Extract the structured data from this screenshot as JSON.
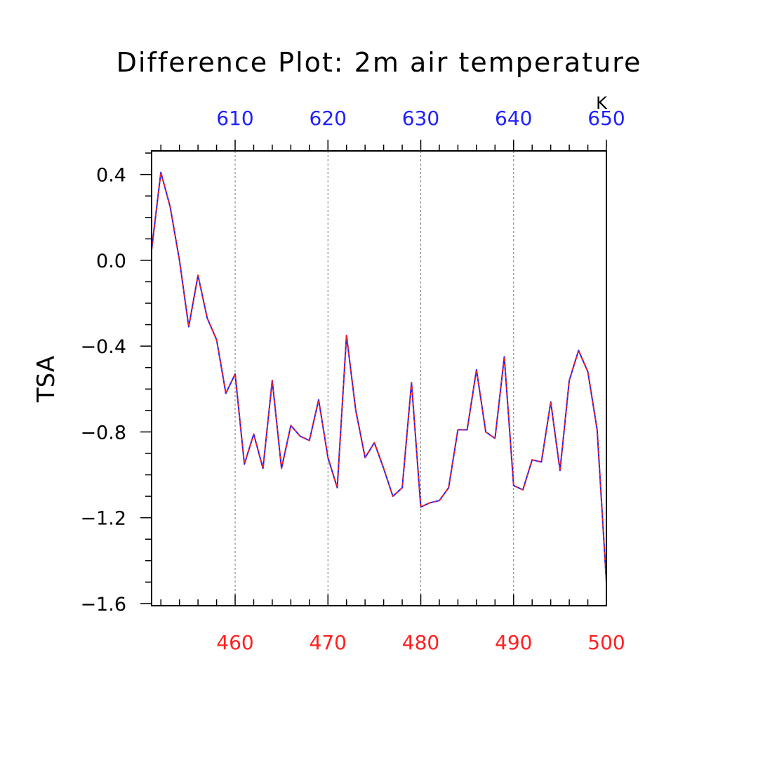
{
  "chart_data": {
    "type": "line",
    "title": "Difference Plot: 2m air temperature",
    "ylabel": "TSA",
    "units_label": "K",
    "ylim": [
      -1.61,
      0.51
    ],
    "yticks": [
      0.4,
      0.0,
      -0.4,
      -0.8,
      -1.2,
      -1.6
    ],
    "ytick_labels": [
      "0.4",
      "0.0",
      "−0.4",
      "−0.8",
      "−1.2",
      "−1.6"
    ],
    "bottom_axis": {
      "xlim": [
        451,
        500
      ],
      "ticks": [
        460,
        470,
        480,
        490,
        500
      ],
      "labels": [
        "460",
        "470",
        "480",
        "490",
        "500"
      ],
      "color": "#ff2020"
    },
    "top_axis": {
      "xlim": [
        601,
        650
      ],
      "ticks": [
        610,
        620,
        630,
        640,
        650
      ],
      "labels": [
        "610",
        "620",
        "630",
        "640",
        "650"
      ],
      "color": "#2020ff"
    },
    "grid_x": [
      460,
      470,
      480,
      490
    ],
    "series": [
      {
        "color": "#2020ff",
        "style": "solid",
        "x": [
          451,
          452,
          453,
          454,
          455,
          456,
          457,
          458,
          459,
          460,
          461,
          462,
          463,
          464,
          465,
          466,
          467,
          468,
          469,
          470,
          471,
          472,
          473,
          474,
          475,
          476,
          477,
          478,
          479,
          480,
          481,
          482,
          483,
          484,
          485,
          486,
          487,
          488,
          489,
          490,
          491,
          492,
          493,
          494,
          495,
          496,
          497,
          498,
          499,
          500
        ],
        "y": [
          0.05,
          0.41,
          0.25,
          0.0,
          -0.31,
          -0.07,
          -0.27,
          -0.37,
          -0.62,
          -0.53,
          -0.95,
          -0.81,
          -0.97,
          -0.56,
          -0.97,
          -0.77,
          -0.82,
          -0.84,
          -0.65,
          -0.92,
          -1.06,
          -0.35,
          -0.7,
          -0.92,
          -0.85,
          -0.97,
          -1.1,
          -1.06,
          -0.57,
          -1.15,
          -1.13,
          -1.12,
          -1.06,
          -0.79,
          -0.79,
          -0.51,
          -0.8,
          -0.83,
          -0.45,
          -1.05,
          -1.07,
          -0.93,
          -0.94,
          -0.66,
          -0.98,
          -0.56,
          -0.42,
          -0.52,
          -0.79,
          -1.5
        ]
      },
      {
        "color": "#ff2020",
        "style": "dashed",
        "x": [
          451,
          452,
          453,
          454,
          455,
          456,
          457,
          458,
          459,
          460,
          461,
          462,
          463,
          464,
          465,
          466,
          467,
          468,
          469,
          470,
          471,
          472,
          473,
          474,
          475,
          476,
          477,
          478,
          479,
          480,
          481,
          482,
          483,
          484,
          485,
          486,
          487,
          488,
          489,
          490,
          491,
          492,
          493,
          494,
          495,
          496,
          497,
          498,
          499,
          500
        ],
        "y": [
          0.05,
          0.41,
          0.25,
          0.0,
          -0.31,
          -0.07,
          -0.27,
          -0.37,
          -0.62,
          -0.53,
          -0.95,
          -0.81,
          -0.97,
          -0.56,
          -0.97,
          -0.77,
          -0.82,
          -0.84,
          -0.65,
          -0.92,
          -1.06,
          -0.35,
          -0.7,
          -0.92,
          -0.85,
          -0.97,
          -1.1,
          -1.06,
          -0.57,
          -1.15,
          -1.13,
          -1.12,
          -1.06,
          -0.79,
          -0.79,
          -0.51,
          -0.8,
          -0.83,
          -0.45,
          -1.05,
          -1.07,
          -0.93,
          -0.94,
          -0.66,
          -0.98,
          -0.56,
          -0.42,
          -0.52,
          -0.79,
          -1.5
        ]
      }
    ]
  }
}
